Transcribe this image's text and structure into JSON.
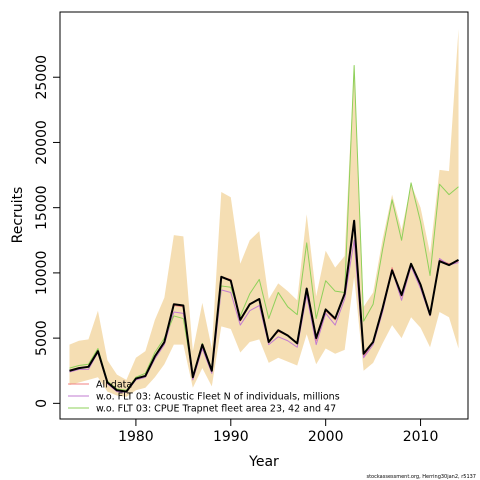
{
  "chart_data": {
    "type": "line",
    "xlabel": "Year",
    "ylabel": "Recruits",
    "xlim": [
      1972,
      2015
    ],
    "ylim": [
      -1200,
      30000
    ],
    "x_ticks": [
      1980,
      1990,
      2000,
      2010
    ],
    "y_ticks": [
      0,
      5000,
      10000,
      15000,
      20000,
      25000
    ],
    "x_tick_labels": [
      "1980",
      "1990",
      "2000",
      "2010"
    ],
    "y_tick_labels": [
      "0",
      "5000",
      "10000",
      "15000",
      "20000",
      "25000"
    ],
    "years": [
      1973,
      1974,
      1975,
      1976,
      1977,
      1978,
      1979,
      1980,
      1981,
      1982,
      1983,
      1984,
      1985,
      1986,
      1987,
      1988,
      1989,
      1990,
      1991,
      1992,
      1993,
      1994,
      1995,
      1996,
      1997,
      1998,
      1999,
      2000,
      2001,
      2002,
      2003,
      2004,
      2005,
      2006,
      2007,
      2008,
      2009,
      2010,
      2011,
      2012,
      2013,
      2014
    ],
    "band": {
      "color": "#f5deb3",
      "upper": [
        4500,
        4800,
        4900,
        7100,
        3300,
        2200,
        1800,
        3500,
        4000,
        6400,
        8100,
        12900,
        12800,
        4000,
        7700,
        4200,
        16200,
        15800,
        10700,
        12500,
        13200,
        8000,
        9200,
        8600,
        7900,
        14500,
        8200,
        11700,
        10400,
        11300,
        25900,
        7400,
        8500,
        12600,
        16000,
        13300,
        16800,
        15000,
        11500,
        17900,
        17800,
        28700
      ],
      "lower": [
        1400,
        1600,
        1800,
        2000,
        900,
        600,
        500,
        1000,
        1200,
        2000,
        3000,
        4500,
        4500,
        1200,
        2700,
        1300,
        5900,
        5700,
        3900,
        4700,
        4900,
        3100,
        3500,
        3200,
        2900,
        5300,
        3000,
        4200,
        3800,
        4100,
        9700,
        2500,
        3100,
        4600,
        6000,
        5000,
        6600,
        5800,
        4300,
        7000,
        6600,
        4200
      ]
    },
    "series": [
      {
        "name": "All data",
        "color": "#f08080",
        "values": [
          2500,
          2700,
          2800,
          4100,
          1600,
          1000,
          900,
          1900,
          2100,
          3600,
          4700,
          7500,
          7400,
          1900,
          4500,
          2400,
          9700,
          9500,
          6300,
          7600,
          8000,
          4800,
          5500,
          5200,
          4600,
          8700,
          4800,
          7100,
          6400,
          8400,
          13900,
          3600,
          4700,
          7400,
          10400,
          8200,
          10600,
          9000,
          6800,
          11000,
          10700,
          10900
        ]
      },
      {
        "name": "w.o. FLT 03: Acoustic Fleet   N of individuals, millions",
        "color": "#c27bd0",
        "values": [
          2400,
          2600,
          2600,
          3900,
          1500,
          900,
          850,
          1800,
          2000,
          3400,
          4500,
          7000,
          6900,
          1800,
          4200,
          2300,
          8700,
          8500,
          6000,
          7100,
          7500,
          4500,
          5100,
          4800,
          4300,
          8300,
          4500,
          6900,
          6000,
          8000,
          12500,
          3500,
          4500,
          7000,
          10200,
          7900,
          10500,
          8800,
          6700,
          11100,
          10600,
          10800
        ]
      },
      {
        "name": "w.o. FLT 03: CPUE Trapnet fleet area 23, 42 and 47",
        "color": "#8ed05a",
        "values": [
          2700,
          2900,
          3000,
          4200,
          1700,
          1100,
          1000,
          2000,
          2300,
          3900,
          5000,
          6700,
          6500,
          2100,
          4600,
          2600,
          9000,
          8900,
          6700,
          8400,
          9500,
          6500,
          8500,
          7400,
          6800,
          12300,
          6500,
          9400,
          8600,
          8500,
          25900,
          6300,
          7600,
          11800,
          15600,
          12500,
          16900,
          13900,
          9800,
          16800,
          16000,
          16600
        ]
      },
      {
        "name": "",
        "color": "#000000",
        "values": [
          2500,
          2700,
          2800,
          4000,
          1600,
          1000,
          900,
          1900,
          2100,
          3600,
          4700,
          7600,
          7500,
          2000,
          4500,
          2500,
          9700,
          9400,
          6400,
          7600,
          8000,
          4700,
          5600,
          5200,
          4600,
          8800,
          5000,
          7200,
          6500,
          8400,
          14000,
          3800,
          4700,
          7300,
          10200,
          8300,
          10700,
          9100,
          6800,
          10900,
          10600,
          11000
        ]
      }
    ],
    "legend": {
      "position": "bottom-left",
      "entries": [
        "All data",
        "w.o. FLT 03: Acoustic Fleet   N of individuals, millions",
        "w.o. FLT 03: CPUE Trapnet fleet area 23, 42 and 47"
      ]
    },
    "grid": false
  },
  "footer_note": "stockassessment.org, Herring30jan2, r5137"
}
